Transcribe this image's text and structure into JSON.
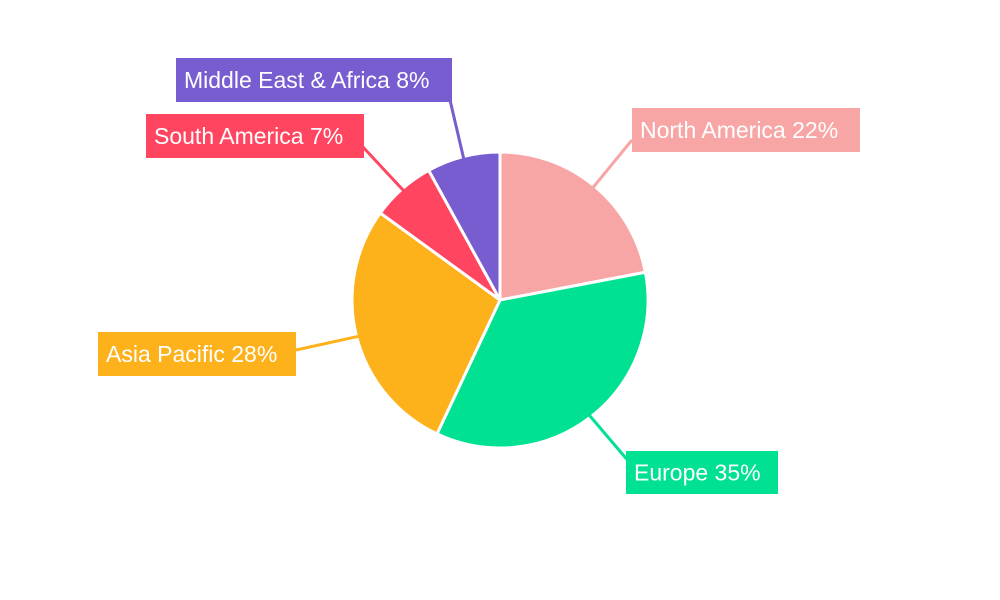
{
  "chart_data": {
    "type": "pie",
    "title": "",
    "start_angle_deg": 0,
    "direction": "clockwise",
    "slices": [
      {
        "label": "North America",
        "value": 22,
        "display": "North America 22%",
        "color": "#F8A5A6"
      },
      {
        "label": "Europe",
        "value": 35,
        "display": "Europe 35%",
        "color": "#00E292"
      },
      {
        "label": "Asia Pacific",
        "value": 28,
        "display": "Asia Pacific 28%",
        "color": "#FDB11B"
      },
      {
        "label": "South America",
        "value": 7,
        "display": "South America 7%",
        "color": "#FF4560"
      },
      {
        "label": "Middle East & Africa",
        "value": 8,
        "display": "Middle East & Africa 8%",
        "color": "#775DD0"
      }
    ]
  }
}
